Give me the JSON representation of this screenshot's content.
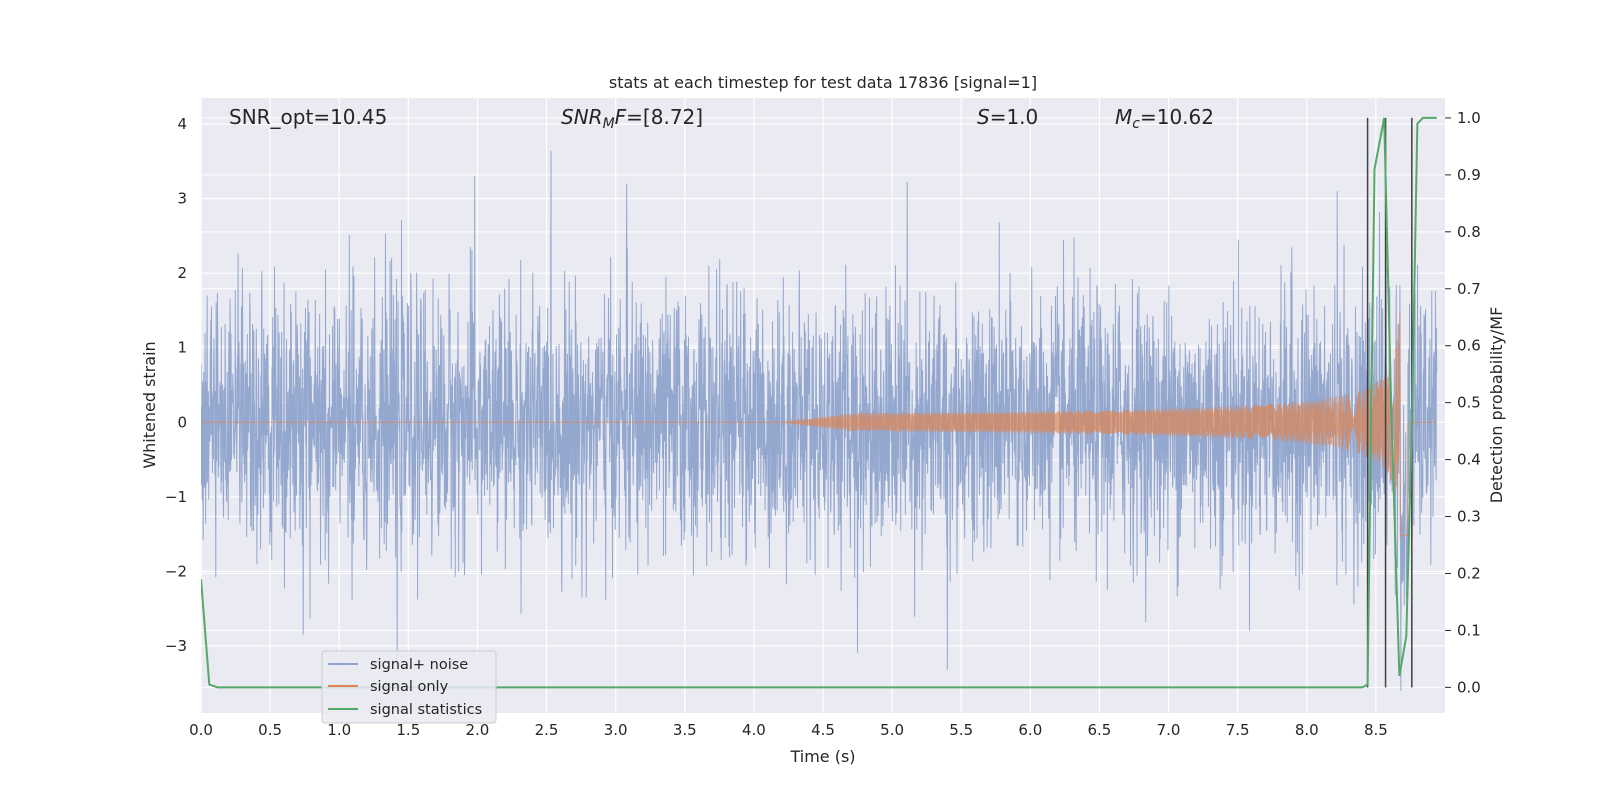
{
  "chart_data": {
    "type": "line",
    "title": "stats at each timestep for test data 17836 [signal=1]",
    "xlabel": "Time (s)",
    "ylabel_left": "Whitened strain",
    "ylabel_right": "Detection probability/MF",
    "xlim": [
      0.0,
      9.0
    ],
    "ylim_left": [
      -3.9,
      4.35
    ],
    "ylim_right": [
      -0.045,
      1.035
    ],
    "grid": true,
    "legend_placement": "lower-left",
    "x_ticks": [
      "0.0",
      "0.5",
      "1.0",
      "1.5",
      "2.0",
      "2.5",
      "3.0",
      "3.5",
      "4.0",
      "4.5",
      "5.0",
      "5.5",
      "6.0",
      "6.5",
      "7.0",
      "7.5",
      "8.0",
      "8.5"
    ],
    "y_ticks_left": [
      "−3",
      "−2",
      "−1",
      "0",
      "1",
      "2",
      "3",
      "4"
    ],
    "y_ticks_right": [
      "0.0",
      "0.1",
      "0.2",
      "0.3",
      "0.4",
      "0.5",
      "0.6",
      "0.7",
      "0.8",
      "0.9",
      "1.0"
    ],
    "annotations": {
      "snr_opt": "SNR_opt=10.45",
      "snr_mf_label": "SNR",
      "snr_mf_sub": "M",
      "snr_mf_rest": "F",
      "snr_mf_value": "=[8.72]",
      "s_label": "S",
      "s_value": "=1.0",
      "mc_label": "M",
      "mc_sub": "c",
      "mc_value": "=10.62"
    },
    "series": [
      {
        "name": "signal+ noise",
        "color": "#8fa4cc",
        "axis": "left",
        "noise_std": 0.85,
        "notable_peaks": [
          {
            "x": 1.98,
            "y": 3.3
          },
          {
            "x": 3.08,
            "y": 3.2
          },
          {
            "x": 5.11,
            "y": 3.3
          },
          {
            "x": 8.22,
            "y": 3.05
          },
          {
            "x": 1.42,
            "y": -3.3
          },
          {
            "x": 4.75,
            "y": -3.1
          },
          {
            "x": 5.4,
            "y": -3.3
          },
          {
            "x": 0.74,
            "y": -2.85
          }
        ]
      },
      {
        "name": "signal only",
        "color": "#dd8452",
        "axis": "left",
        "chirp": {
          "start": 4.2,
          "merger": 8.68,
          "peak_amplitude": 1.7
        }
      },
      {
        "name": "signal statistics",
        "color": "#55a868",
        "axis": "right",
        "x": [
          0.0,
          0.06,
          0.12,
          8.4,
          8.44,
          8.49,
          8.56,
          8.61,
          8.67,
          8.72,
          8.76,
          8.8,
          8.84,
          8.88,
          8.94
        ],
        "y": [
          0.19,
          0.005,
          0.0,
          0.0,
          0.005,
          0.91,
          1.0,
          0.5,
          0.02,
          0.09,
          0.46,
          0.99,
          1.0,
          1.0,
          1.0
        ]
      }
    ],
    "markers": {
      "color": "#404040",
      "x": [
        8.44,
        8.57,
        8.76
      ],
      "y_range": [
        0.0,
        1.0
      ]
    }
  },
  "legend": [
    {
      "label": "signal+ noise",
      "color": "#8fa4cc"
    },
    {
      "label": "signal only",
      "color": "#dd8452"
    },
    {
      "label": "signal statistics",
      "color": "#55a868"
    }
  ],
  "colors": {
    "axes_bg": "#eaeaf2",
    "grid": "#ffffff"
  }
}
